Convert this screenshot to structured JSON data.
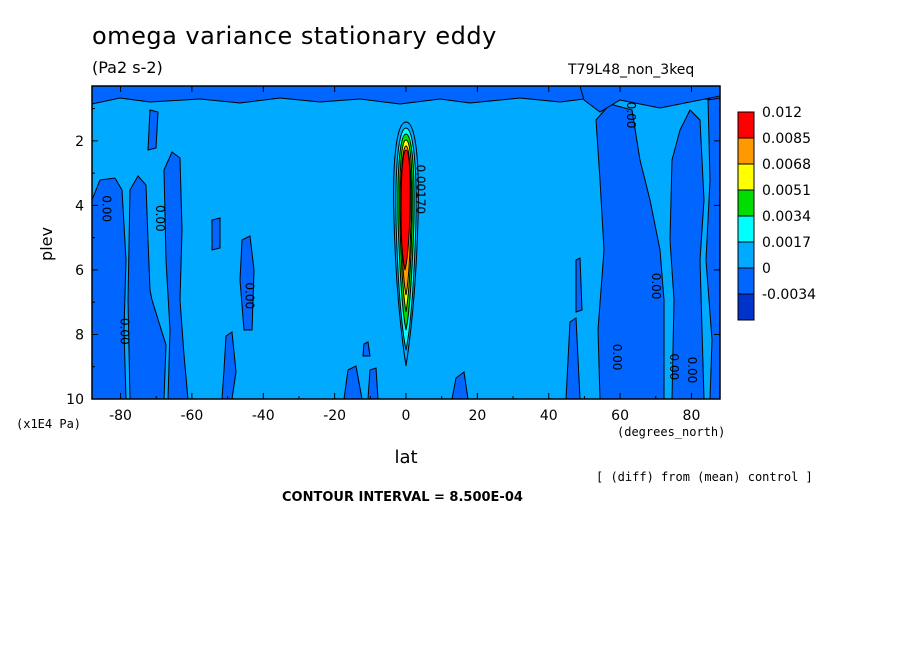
{
  "chart_data": {
    "type": "heatmap",
    "title": "omega variance stationary eddy",
    "units": "(Pa2 s-2)",
    "run_name": "T79L48_non_3keq",
    "xlabel": "lat",
    "xlabel_units": "(degrees_north)",
    "ylabel": "plev",
    "ylabel_units": "(x1E4 Pa)",
    "xlim": [
      -88,
      88
    ],
    "ylim": [
      10,
      0.3
    ],
    "x_ticks": [
      -80,
      -60,
      -40,
      -20,
      0,
      20,
      40,
      60,
      80
    ],
    "x_tick_labels": [
      "-80",
      "-60",
      "-40",
      "-20",
      "0",
      "20",
      "40",
      "60",
      "80"
    ],
    "y_ticks": [
      2,
      4,
      6,
      8,
      10
    ],
    "y_tick_labels": [
      "2",
      "4",
      "6",
      "8",
      "10"
    ],
    "colorbar_levels": [
      "0.012",
      "0.0085",
      "0.0068",
      "0.0051",
      "0.0034",
      "0.0017",
      "0",
      "-0.0034"
    ],
    "colorbar_colors": [
      "#ff0000",
      "#ff9900",
      "#ffff00",
      "#00dd00",
      "#00ffff",
      "#00aaff",
      "#0066ff",
      "#0033cc"
    ],
    "contour_labels": [
      {
        "text": "0.00",
        "lat": -85,
        "plev": 4.1
      },
      {
        "text": "0.00",
        "lat": -70,
        "plev": 4.4
      },
      {
        "text": "0.00",
        "lat": -80,
        "plev": 7.9
      },
      {
        "text": "0.00",
        "lat": -45,
        "plev": 6.8
      },
      {
        "text": "0.00",
        "lat": 62,
        "plev": 1.2
      },
      {
        "text": "0.00",
        "lat": 69,
        "plev": 6.5
      },
      {
        "text": "0.00",
        "lat": 58,
        "plev": 8.7
      },
      {
        "text": "0.00",
        "lat": 74,
        "plev": 9.0
      },
      {
        "text": "0.00",
        "lat": 79,
        "plev": 9.1
      },
      {
        "text": "0.00170",
        "lat": 3,
        "plev": 3.5
      }
    ],
    "background_value_color": "#00aaff",
    "contour_interval_text": "CONTOUR INTERVAL = 8.500E-04",
    "note": "[ (diff) from (mean) control ]"
  }
}
